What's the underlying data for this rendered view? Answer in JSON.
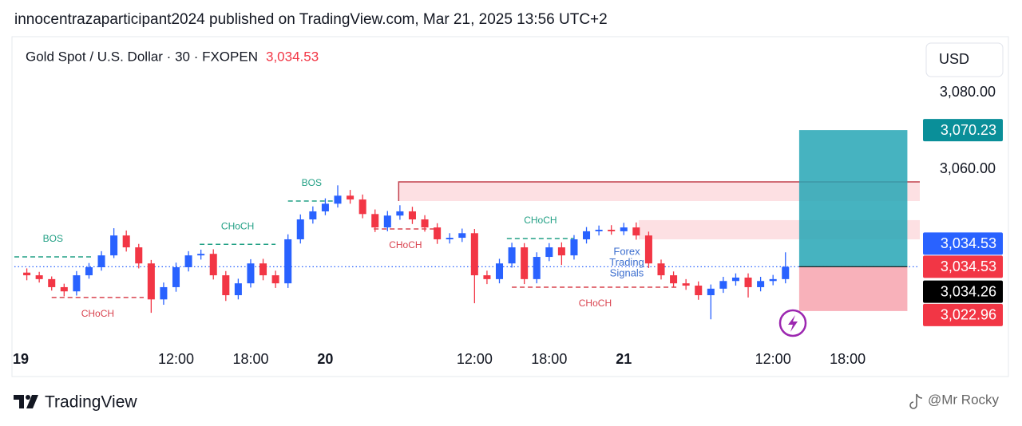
{
  "header": {
    "text": "innocentrazaparticipant2024 published on TradingView.com, Mar 21, 2025 13:56 UTC+2"
  },
  "chart_data": {
    "type": "candlestick",
    "title": "Gold Spot / U.S. Dollar · 30 · FXOPEN",
    "last_price": {
      "value": 3034.53,
      "label": "3,034.53"
    },
    "currency": "USD",
    "up_color": "#2962ff",
    "down_color": "#f23645",
    "x": [
      0,
      1,
      2,
      3,
      4,
      5,
      6,
      7,
      8,
      9,
      10,
      11,
      12,
      13,
      14,
      15,
      16,
      17,
      18,
      19,
      20,
      21,
      22,
      23,
      24,
      25,
      26,
      27,
      28,
      29,
      30,
      31,
      32,
      33,
      34,
      35,
      36,
      37,
      38,
      39,
      40,
      41,
      42,
      43,
      44,
      45,
      46,
      47,
      48,
      49,
      50,
      51,
      52,
      53,
      54,
      55,
      56,
      57,
      58,
      59,
      60,
      61
    ],
    "open": [
      3033.0,
      3032.3,
      3031.3,
      3029.2,
      3028.1,
      3032.3,
      3034.4,
      3037.5,
      3042.7,
      3039.6,
      3035.4,
      3026.0,
      3029.2,
      3034.4,
      3037.5,
      3037.9,
      3032.3,
      3027.1,
      3030.2,
      3035.4,
      3032.3,
      3030.2,
      3041.7,
      3046.9,
      3049.0,
      3051.0,
      3053.1,
      3052.1,
      3048.3,
      3044.8,
      3047.9,
      3049.0,
      3046.9,
      3044.8,
      3041.7,
      3042.1,
      3043.3,
      3032.3,
      3031.3,
      3035.4,
      3039.6,
      3031.3,
      3037.1,
      3039.6,
      3037.5,
      3041.7,
      3043.8,
      3044.2,
      3043.8,
      3044.8,
      3042.7,
      3035.4,
      3032.3,
      3030.2,
      3029.6,
      3027.1,
      3028.8,
      3030.8,
      3031.7,
      3029.2,
      3030.8,
      3031.3
    ],
    "high": [
      3034.1,
      3033.2,
      3032.0,
      3030.1,
      3033.4,
      3035.5,
      3038.6,
      3044.6,
      3044.0,
      3040.5,
      3036.3,
      3030.4,
      3035.6,
      3038.6,
      3039.0,
      3039.1,
      3033.4,
      3031.4,
      3036.5,
      3036.6,
      3033.5,
      3043.0,
      3048.2,
      3050.3,
      3052.4,
      3055.8,
      3054.6,
      3053.4,
      3049.5,
      3049.1,
      3050.6,
      3050.2,
      3048.0,
      3045.9,
      3043.3,
      3044.5,
      3044.4,
      3033.5,
      3036.6,
      3040.8,
      3040.7,
      3038.3,
      3040.7,
      3040.9,
      3042.8,
      3044.9,
      3045.3,
      3045.4,
      3046.0,
      3046.1,
      3043.7,
      3036.4,
      3033.3,
      3031.3,
      3030.7,
      3029.9,
      3031.9,
      3032.8,
      3032.8,
      3031.9,
      3032.4,
      3038.3
    ],
    "low": [
      3031.0,
      3030.4,
      3028.3,
      3026.8,
      3027.0,
      3031.4,
      3033.5,
      3036.8,
      3038.5,
      3034.1,
      3022.5,
      3024.6,
      3028.0,
      3033.3,
      3036.4,
      3031.2,
      3025.6,
      3026.0,
      3029.1,
      3031.0,
      3029.0,
      3029.0,
      3040.6,
      3045.8,
      3048.0,
      3050.0,
      3051.0,
      3047.2,
      3043.6,
      3043.8,
      3046.8,
      3045.7,
      3043.7,
      3040.5,
      3040.6,
      3041.0,
      3025.0,
      3030.0,
      3030.2,
      3034.3,
      3030.0,
      3030.2,
      3036.0,
      3035.0,
      3036.4,
      3040.6,
      3042.7,
      3042.9,
      3042.8,
      3041.6,
      3034.2,
      3031.2,
      3029.1,
      3028.5,
      3025.9,
      3020.8,
      3027.7,
      3029.6,
      3026.5,
      3028.1,
      3029.7,
      3030.2
    ],
    "close": [
      3032.3,
      3031.3,
      3029.2,
      3028.1,
      3032.3,
      3034.4,
      3037.5,
      3042.7,
      3039.6,
      3035.4,
      3026.0,
      3029.2,
      3034.4,
      3037.5,
      3037.9,
      3032.3,
      3027.1,
      3030.2,
      3035.4,
      3032.3,
      3030.2,
      3041.7,
      3046.9,
      3049.0,
      3051.0,
      3053.1,
      3052.1,
      3048.3,
      3044.8,
      3047.9,
      3049.0,
      3046.9,
      3044.8,
      3041.7,
      3042.1,
      3043.3,
      3032.3,
      3031.3,
      3035.4,
      3039.6,
      3031.3,
      3037.1,
      3039.6,
      3037.5,
      3041.7,
      3043.8,
      3044.2,
      3043.8,
      3044.8,
      3042.7,
      3035.4,
      3032.3,
      3030.2,
      3029.6,
      3027.1,
      3028.8,
      3030.8,
      3031.7,
      3029.2,
      3030.8,
      3031.3,
      3034.53
    ],
    "xlim": [
      -1,
      71.8
    ],
    "ylim": [
      3014.6,
      3093.8
    ],
    "xticks": [
      {
        "value": 0,
        "label": "19"
      },
      {
        "value": 12,
        "label": "12:00"
      },
      {
        "value": 18,
        "label": "18:00"
      },
      {
        "value": 24,
        "label": "20"
      },
      {
        "value": 36,
        "label": "12:00"
      },
      {
        "value": 42,
        "label": "18:00"
      },
      {
        "value": 48,
        "label": "21"
      },
      {
        "value": 60,
        "label": "12:00"
      },
      {
        "value": 66,
        "label": "18:00"
      }
    ],
    "yticks": [
      {
        "value": 3080,
        "label": "3,080.00"
      },
      {
        "value": 3060,
        "label": "3,060.00"
      }
    ],
    "price_labels": [
      {
        "value": 3070.23,
        "label": "3,070.23",
        "color": "#0a8f99"
      },
      {
        "value": 3034.53,
        "label": "3,034.53",
        "color": "#2962ff"
      },
      {
        "value": 3034.53,
        "label": "3,034.53",
        "color": "#f23645"
      },
      {
        "value": 3034.26,
        "label": "3,034.26",
        "color": "#000000"
      },
      {
        "value": 3022.96,
        "label": "3,022.96",
        "color": "#f23645"
      }
    ],
    "position": {
      "entry": 3034.53,
      "take_profit": 3070.23,
      "stop_loss": 3022.96,
      "x_start": 62.1,
      "x_end": 70.8,
      "profit_color": "#26a6b5",
      "loss_color": "#f7a9b3"
    },
    "zones": [
      {
        "top": 3056.7,
        "bottom": 3051.7,
        "x_start": 29.9,
        "color": "#fde0e3",
        "border": "#c2404d"
      },
      {
        "top": 3046.7,
        "bottom": 3041.7,
        "x_start": 49.2,
        "color": "#fde0e3"
      }
    ],
    "structure": [
      {
        "label": "BOS",
        "value": 3037.1,
        "x_start": -1,
        "x_end": 5.2,
        "color": "#22a085",
        "side": "above"
      },
      {
        "label": "CHoCH",
        "value": 3026.5,
        "x_start": 2,
        "x_end": 9.4,
        "color": "#d9434f",
        "side": "below"
      },
      {
        "label": "CHoCH",
        "value": 3040.4,
        "x_start": 13.9,
        "x_end": 20,
        "color": "#22a085",
        "side": "above"
      },
      {
        "label": "BOS",
        "value": 3051.7,
        "x_start": 21,
        "x_end": 24.8,
        "color": "#22a085",
        "side": "above"
      },
      {
        "label": "CHoCH",
        "value": 3044.4,
        "x_start": 27.9,
        "x_end": 33,
        "color": "#d9434f",
        "side": "below"
      },
      {
        "label": "CHoCH",
        "value": 3041.9,
        "x_start": 38.6,
        "x_end": 44,
        "color": "#22a085",
        "side": "above"
      },
      {
        "label": "CHoCH",
        "value": 3029.2,
        "x_start": 39,
        "x_end": 52.4,
        "color": "#d9434f",
        "side": "below"
      }
    ],
    "watermark": [
      "Forex",
      "Trading",
      "Signals"
    ]
  },
  "footer": {
    "brand": "TradingView",
    "credit": "@Mr Rocky"
  }
}
